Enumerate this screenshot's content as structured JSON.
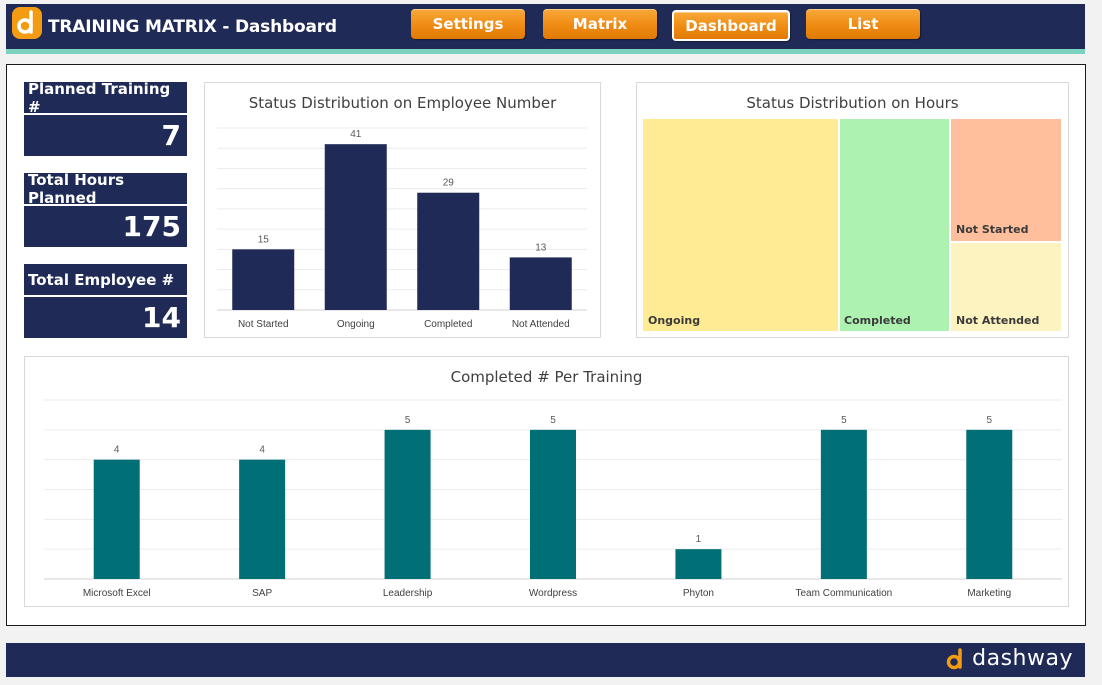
{
  "header": {
    "title": "TRAINING MATRIX - Dashboard",
    "nav": [
      {
        "label": "Settings",
        "active": false
      },
      {
        "label": "Matrix",
        "active": false
      },
      {
        "label": "Dashboard",
        "active": true
      },
      {
        "label": "List",
        "active": false
      }
    ]
  },
  "kpis": [
    {
      "label": "Planned Training #",
      "value": "7"
    },
    {
      "label": "Total Hours Planned",
      "value": "175"
    },
    {
      "label": "Total Employee #",
      "value": "14"
    }
  ],
  "footer": {
    "brand": "dashway"
  },
  "colors": {
    "navy": "#1f2a56",
    "orange": "#ef8b12",
    "teal": "#006f76",
    "accent_line": "#7dd3c0"
  },
  "chart_data": [
    {
      "type": "bar",
      "title": "Status Distribution on Employee Number",
      "categories": [
        "Not Started",
        "Ongoing",
        "Completed",
        "Not Attended"
      ],
      "values": [
        15,
        41,
        29,
        13
      ],
      "ylim": [
        0,
        45
      ],
      "grid": true,
      "color": "#1f2a56"
    },
    {
      "type": "treemap",
      "title": "Status Distribution on Hours",
      "items": [
        {
          "label": "Ongoing",
          "color": "#ffeb94"
        },
        {
          "label": "Completed",
          "color": "#aef2b2"
        },
        {
          "label": "Not Started",
          "color": "#ffbf9d"
        },
        {
          "label": "Not Attended",
          "color": "#fcf3c1"
        }
      ]
    },
    {
      "type": "bar",
      "title": "Completed # Per Training",
      "categories": [
        "Microsoft Excel",
        "SAP",
        "Leadership",
        "Wordpress",
        "Phyton",
        "Team Communication",
        "Marketing"
      ],
      "values": [
        4,
        4,
        5,
        5,
        1,
        5,
        5
      ],
      "ylim": [
        0,
        6
      ],
      "grid": true,
      "color": "#006f76"
    }
  ]
}
